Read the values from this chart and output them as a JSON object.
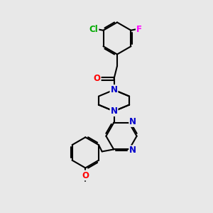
{
  "bg_color": "#e8e8e8",
  "bond_color": "#000000",
  "bond_width": 1.5,
  "atom_colors": {
    "N": "#0000cc",
    "O": "#ff0000",
    "Cl": "#00aa00",
    "F": "#ff00ff",
    "C": "#000000"
  },
  "font_size": 8.5,
  "fig_size": [
    3.0,
    3.0
  ],
  "dpi": 100
}
